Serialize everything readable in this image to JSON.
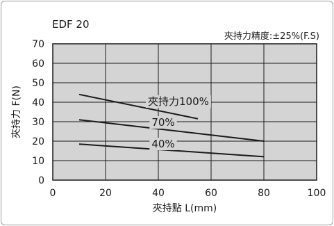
{
  "chart_data": {
    "type": "line",
    "title": "EDF 20",
    "annotation": "夾持力精度:±25%(F.S)",
    "xlabel": "夾持點 L(mm)",
    "ylabel": "夾持力 F(N)",
    "xlim": [
      0,
      100
    ],
    "ylim": [
      0,
      70
    ],
    "x_ticks": [
      0,
      20,
      40,
      60,
      80,
      100
    ],
    "y_ticks": [
      0,
      10,
      20,
      30,
      40,
      50,
      60,
      70
    ],
    "grid": true,
    "plot_background": "#d4d4d4",
    "line_color": "#1a1a1a",
    "series": [
      {
        "name": "夾持力100%",
        "x": [
          10,
          55
        ],
        "y": [
          44,
          31.5
        ]
      },
      {
        "name": "70%",
        "x": [
          10,
          80
        ],
        "y": [
          31,
          20
        ]
      },
      {
        "name": "40%",
        "x": [
          10,
          80
        ],
        "y": [
          18.5,
          12
        ]
      }
    ]
  }
}
